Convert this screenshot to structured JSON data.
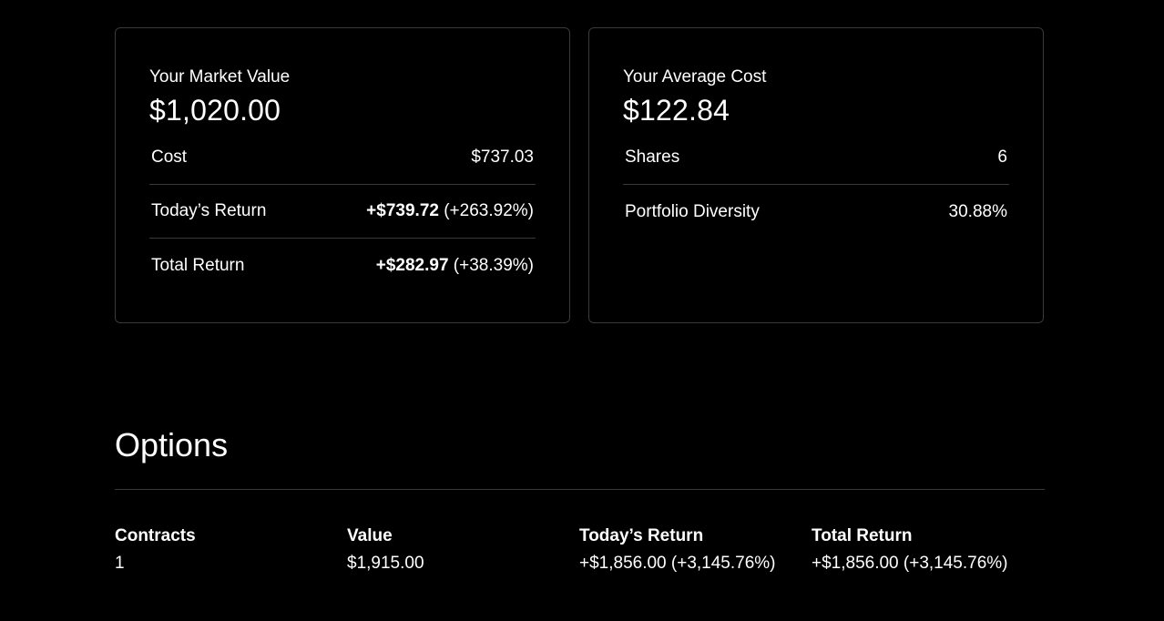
{
  "market_value_card": {
    "label": "Your Market Value",
    "value": "$1,020.00",
    "rows": [
      {
        "label": "Cost",
        "amount": "$737.03",
        "percent": ""
      },
      {
        "label": "Today’s Return",
        "amount": "+$739.72",
        "percent": " (+263.92%)"
      },
      {
        "label": "Total Return",
        "amount": "+$282.97",
        "percent": " (+38.39%)"
      }
    ]
  },
  "average_cost_card": {
    "label": "Your Average Cost",
    "value": "$122.84",
    "rows": [
      {
        "label": "Shares",
        "amount": "6"
      },
      {
        "label": "Portfolio Diversity",
        "amount": "30.88%"
      }
    ]
  },
  "options": {
    "title": "Options",
    "headers": [
      "Contracts",
      "Value",
      "Today’s Return",
      "Total Return"
    ],
    "row": [
      "1",
      "$1,915.00",
      "+$1,856.00 (+3,145.76%)",
      "+$1,856.00 (+3,145.76%)"
    ]
  },
  "colors": {
    "background": "#000000",
    "text": "#ffffff",
    "border": "#3a3a3a"
  }
}
